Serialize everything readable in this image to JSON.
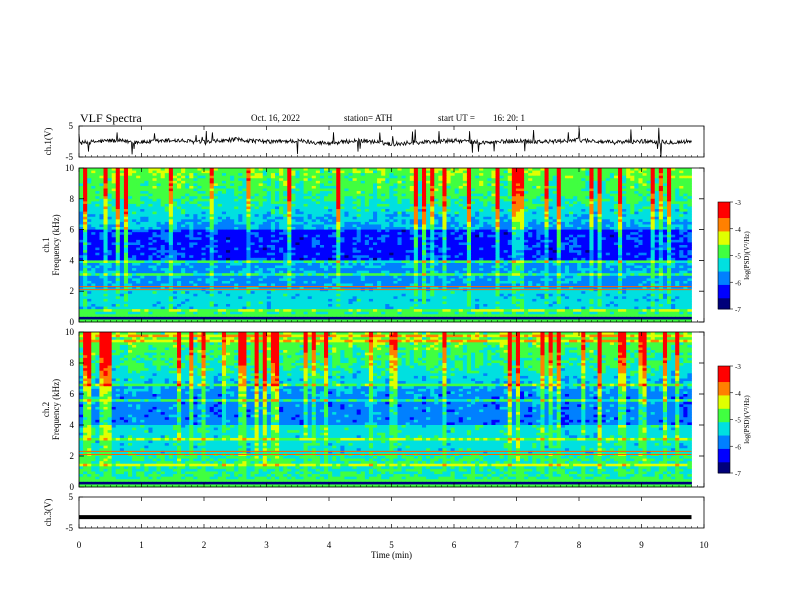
{
  "header": {
    "title": "VLF  Spectra",
    "date": "Oct. 16,  2022",
    "station": "station= ATH",
    "start_label": "start  UT  =",
    "start_time": "16: 20: 1"
  },
  "colors": {
    "colormap": [
      "#00007a",
      "#0000ff",
      "#0080ff",
      "#00e0e0",
      "#40ff40",
      "#e0ff00",
      "#ff8000",
      "#ff0000",
      "#ffffff"
    ],
    "waveform": "#000000",
    "axes": "#000000"
  },
  "chart_data": [
    {
      "type": "line",
      "panel": "ch1-waveform",
      "ylabel": "ch.1(V)",
      "ylim": [
        -5,
        5
      ],
      "yticks": [
        "5",
        "-5"
      ],
      "xlim": [
        0,
        10
      ],
      "x": [
        0,
        0.5,
        1,
        1.5,
        2,
        2.5,
        3,
        3.5,
        4,
        4.5,
        5,
        5.5,
        6,
        6.5,
        7,
        7.5,
        8,
        8.5,
        9,
        9.5,
        9.8
      ],
      "y": [
        -0.5,
        0.3,
        -0.2,
        0.4,
        -0.3,
        0.6,
        -0.1,
        0.2,
        -0.6,
        0.4,
        -0.8,
        -0.2,
        0.3,
        -0.4,
        0.2,
        -0.1,
        0.5,
        -0.3,
        0.1,
        -0.2,
        0.0
      ]
    },
    {
      "type": "heatmap",
      "panel": "ch1-spectrogram",
      "ylabel_top": "ch.1",
      "ylabel": "Frequency  (kHz)",
      "ylim": [
        0,
        10
      ],
      "yticks": [
        "0",
        "2",
        "4",
        "6",
        "8",
        "10"
      ],
      "xlim": [
        0,
        10
      ],
      "colorbar": {
        "label": "log(PSD)(V²/Hz)",
        "range": [
          -7,
          -3
        ],
        "ticks": [
          "-3",
          "-4",
          "-5",
          "-6",
          "-7"
        ]
      }
    },
    {
      "type": "heatmap",
      "panel": "ch2-spectrogram",
      "ylabel_top": "ch.2",
      "ylabel": "Frequency  (kHz)",
      "ylim": [
        0,
        10
      ],
      "yticks": [
        "0",
        "2",
        "4",
        "6",
        "8",
        "10"
      ],
      "xlim": [
        0,
        10
      ],
      "colorbar": {
        "label": "log(PSD)(V²/Hz)",
        "range": [
          -7,
          -3
        ],
        "ticks": [
          "-3",
          "-4",
          "-5",
          "-6",
          "-7"
        ]
      }
    },
    {
      "type": "line",
      "panel": "ch3-waveform",
      "ylabel": "ch.3(V)",
      "ylim": [
        -5,
        5
      ],
      "yticks": [
        "5",
        "-5"
      ],
      "xlim": [
        0,
        10
      ],
      "x": [
        0,
        9.8
      ],
      "y": [
        -1.5,
        -1.5
      ]
    }
  ],
  "time_axis": {
    "label": "Time  (min)",
    "ticks": [
      "0",
      "1",
      "2",
      "3",
      "4",
      "5",
      "6",
      "7",
      "8",
      "9",
      "10"
    ]
  }
}
